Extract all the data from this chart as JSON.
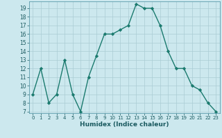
{
  "x": [
    0,
    1,
    2,
    3,
    4,
    5,
    6,
    7,
    8,
    9,
    10,
    11,
    12,
    13,
    14,
    15,
    16,
    17,
    18,
    19,
    20,
    21,
    22,
    23
  ],
  "y": [
    9,
    12,
    8,
    9,
    13,
    9,
    7,
    11,
    13.5,
    16,
    16,
    16.5,
    17,
    19.5,
    19,
    19,
    17,
    14,
    12,
    12,
    10,
    9.5,
    8,
    7
  ],
  "line_color": "#1a7a6e",
  "marker": "D",
  "marker_size": 2.2,
  "bg_color": "#cce8ee",
  "grid_color": "#aaccd4",
  "xlabel": "Humidex (Indice chaleur)",
  "xlim": [
    -0.5,
    23.5
  ],
  "ylim": [
    6.8,
    19.8
  ],
  "yticks": [
    7,
    8,
    9,
    10,
    11,
    12,
    13,
    14,
    15,
    16,
    17,
    18,
    19
  ],
  "xticks": [
    0,
    1,
    2,
    3,
    4,
    5,
    6,
    7,
    8,
    9,
    10,
    11,
    12,
    13,
    14,
    15,
    16,
    17,
    18,
    19,
    20,
    21,
    22,
    23
  ]
}
